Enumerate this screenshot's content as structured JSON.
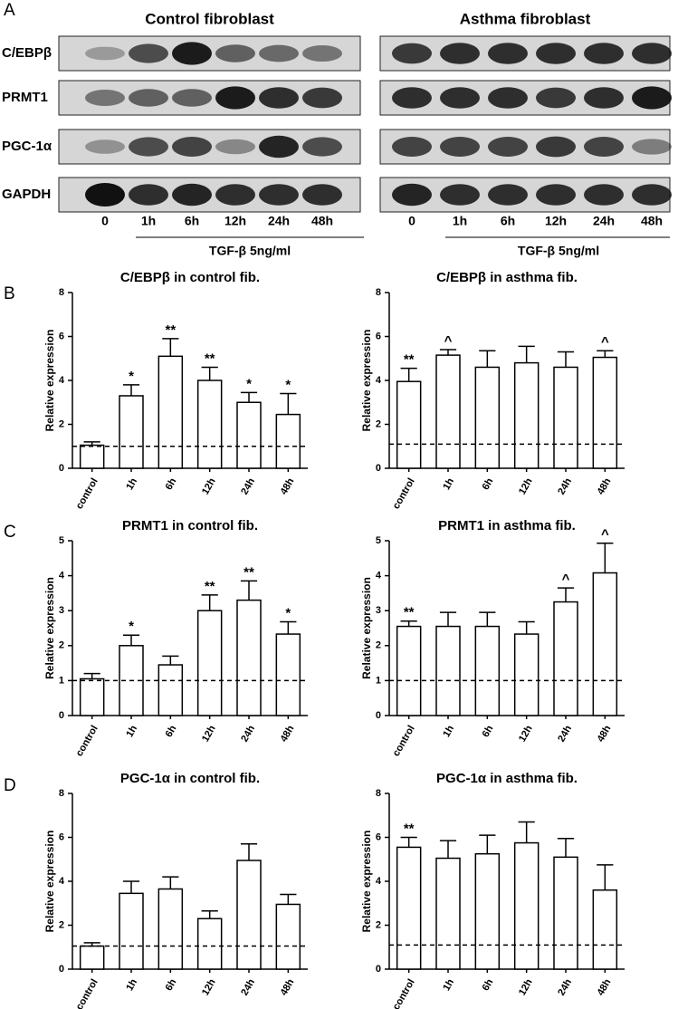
{
  "blot": {
    "panel_label": "A",
    "rows": [
      "C/EBPβ",
      "PRMT1",
      "PGC-1α",
      "GAPDH"
    ],
    "groups": [
      {
        "title": "Control fibroblast",
        "lanes": [
          "0",
          "1h",
          "6h",
          "12h",
          "24h",
          "48h"
        ],
        "treatment": "TGF-β 5ng/ml"
      },
      {
        "title": "Asthma fibroblast",
        "lanes": [
          "0",
          "1h",
          "6h",
          "12h",
          "24h",
          "48h"
        ],
        "treatment": "TGF-β 5ng/ml"
      }
    ]
  },
  "panel_labels": [
    "B",
    "C",
    "D"
  ],
  "chart_data": [
    {
      "type": "bar",
      "title": "C/EBPβ in control fib.",
      "y_label": "Relative expression",
      "categories": [
        "control",
        "1h",
        "6h",
        "12h",
        "24h",
        "48h"
      ],
      "values": [
        1.05,
        3.3,
        5.1,
        4.0,
        3.0,
        2.45
      ],
      "errors": [
        0.15,
        0.5,
        0.8,
        0.6,
        0.45,
        0.95
      ],
      "annotations": [
        null,
        "*",
        "**",
        "**",
        "*",
        "*"
      ],
      "reference_line": 1,
      "ylim": [
        0,
        8
      ],
      "yticks": [
        0,
        2,
        4,
        6,
        8
      ],
      "color": "#ffffff"
    },
    {
      "type": "bar",
      "title": "C/EBPβ  in asthma fib.",
      "y_label": "Relative expression",
      "categories": [
        "control",
        "1h",
        "6h",
        "12h",
        "24h",
        "48h"
      ],
      "values": [
        3.95,
        5.15,
        4.6,
        4.8,
        4.6,
        5.05
      ],
      "errors": [
        0.6,
        0.25,
        0.75,
        0.75,
        0.7,
        0.3
      ],
      "annotations": [
        "**",
        "^",
        null,
        null,
        null,
        "^"
      ],
      "reference_line": 1.1,
      "ylim": [
        0,
        8
      ],
      "yticks": [
        0,
        2,
        4,
        6,
        8
      ],
      "color": "#ffffff"
    },
    {
      "type": "bar",
      "title": "PRMT1 in control fib.",
      "y_label": "Relative expression",
      "categories": [
        "control",
        "1h",
        "6h",
        "12h",
        "24h",
        "48h"
      ],
      "values": [
        1.05,
        2.0,
        1.45,
        3.0,
        3.3,
        2.33
      ],
      "errors": [
        0.15,
        0.3,
        0.25,
        0.45,
        0.55,
        0.35
      ],
      "annotations": [
        null,
        "*",
        null,
        "**",
        "**",
        "*"
      ],
      "reference_line": 1,
      "ylim": [
        0,
        5
      ],
      "yticks": [
        0,
        1,
        2,
        3,
        4,
        5
      ],
      "color": "#ffffff"
    },
    {
      "type": "bar",
      "title": "PRMT1 in asthma fib.",
      "y_label": "Relative expression",
      "categories": [
        "control",
        "1h",
        "6h",
        "12h",
        "24h",
        "48h"
      ],
      "values": [
        2.55,
        2.55,
        2.55,
        2.33,
        3.25,
        4.08
      ],
      "errors": [
        0.15,
        0.4,
        0.4,
        0.35,
        0.4,
        0.85
      ],
      "annotations": [
        "**",
        null,
        null,
        null,
        "^",
        "^"
      ],
      "reference_line": 1,
      "ylim": [
        0,
        5
      ],
      "yticks": [
        0,
        1,
        2,
        3,
        4,
        5
      ],
      "color": "#ffffff"
    },
    {
      "type": "bar",
      "title": "PGC-1α  in control fib.",
      "y_label": "Relative expression",
      "categories": [
        "control",
        "1h",
        "6h",
        "12h",
        "24h",
        "48h"
      ],
      "values": [
        1.05,
        3.45,
        3.65,
        2.3,
        4.95,
        2.95
      ],
      "errors": [
        0.15,
        0.55,
        0.55,
        0.35,
        0.75,
        0.45
      ],
      "annotations": [
        null,
        null,
        null,
        null,
        null,
        null
      ],
      "reference_line": 1.05,
      "ylim": [
        0,
        8
      ],
      "yticks": [
        0,
        2,
        4,
        6,
        8
      ],
      "color": "#ffffff"
    },
    {
      "type": "bar",
      "title": "PGC-1α  in asthma fib.",
      "y_label": "Relative expression",
      "categories": [
        "control",
        "1h",
        "6h",
        "12h",
        "24h",
        "48h"
      ],
      "values": [
        5.55,
        5.05,
        5.25,
        5.75,
        5.1,
        3.6
      ],
      "errors": [
        0.45,
        0.8,
        0.85,
        0.95,
        0.85,
        1.15
      ],
      "annotations": [
        "**",
        null,
        null,
        null,
        null,
        null
      ],
      "reference_line": 1.1,
      "ylim": [
        0,
        8
      ],
      "yticks": [
        0,
        2,
        4,
        6,
        8
      ],
      "color": "#ffffff"
    }
  ]
}
